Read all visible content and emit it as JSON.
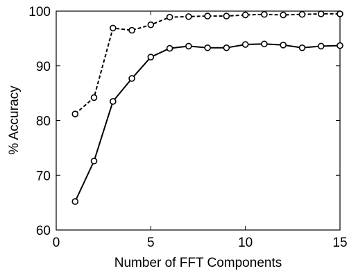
{
  "chart_data": {
    "type": "line",
    "title": "",
    "xlabel": "Number of FFT Components",
    "ylabel": "% Accuracy",
    "xlim": [
      0,
      15
    ],
    "ylim": [
      60,
      100
    ],
    "xticks": [
      0,
      5,
      10,
      15
    ],
    "yticks": [
      60,
      70,
      80,
      90,
      100
    ],
    "grid": false,
    "legend": "none",
    "x": [
      1,
      2,
      3,
      4,
      5,
      6,
      7,
      8,
      9,
      10,
      11,
      12,
      13,
      14,
      15
    ],
    "series": [
      {
        "style": "dashed",
        "marker": "circle",
        "color": "#000000",
        "values": [
          81.2,
          84.2,
          96.9,
          96.5,
          97.5,
          98.9,
          99.0,
          99.1,
          99.1,
          99.3,
          99.4,
          99.3,
          99.4,
          99.5,
          99.5
        ]
      },
      {
        "style": "solid",
        "marker": "circle",
        "color": "#000000",
        "values": [
          65.2,
          72.6,
          83.5,
          87.7,
          91.6,
          93.2,
          93.6,
          93.3,
          93.3,
          93.9,
          94.0,
          93.8,
          93.3,
          93.6,
          93.7
        ]
      }
    ]
  }
}
